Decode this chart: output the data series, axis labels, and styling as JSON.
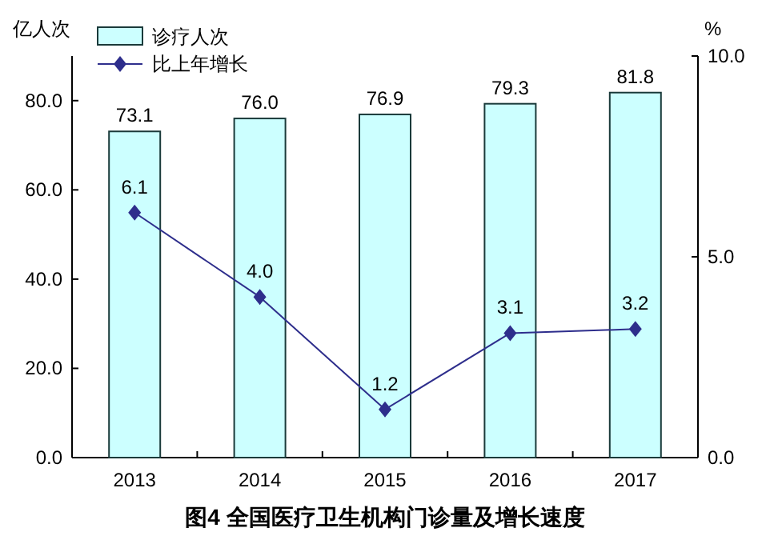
{
  "chart_data": {
    "type": "bar",
    "title": "图4  全国医疗卫生机构门诊量及增长速度",
    "ylabel": "亿人次",
    "y2label": "%",
    "categories": [
      "2013",
      "2014",
      "2015",
      "2016",
      "2017"
    ],
    "series": [
      {
        "name": "诊疗人次",
        "color": "#ccffff",
        "values": [
          73.1,
          76.0,
          76.9,
          79.3,
          81.8
        ],
        "value_labels": [
          "73.1",
          "76.0",
          "76.9",
          "79.3",
          "81.8"
        ]
      },
      {
        "name": "比上年增长",
        "type": "line",
        "axis": "y2",
        "color": "#2e2e8c",
        "values": [
          6.1,
          4.0,
          1.2,
          3.1,
          3.2
        ],
        "value_labels": [
          "6.1",
          "4.0",
          "1.2",
          "3.1",
          "3.2"
        ]
      }
    ],
    "ylim": [
      0,
      90
    ],
    "yticks": [
      {
        "value": 0,
        "label": "0.0"
      },
      {
        "value": 20,
        "label": "20.0"
      },
      {
        "value": 40,
        "label": "40.0"
      },
      {
        "value": 60,
        "label": "60.0"
      },
      {
        "value": 80,
        "label": "80.0"
      }
    ],
    "y2lim": [
      0,
      10
    ],
    "y2ticks": [
      {
        "value": 0,
        "label": "0.0"
      },
      {
        "value": 5,
        "label": "5.0"
      },
      {
        "value": 10,
        "label": "10.0"
      }
    ],
    "legend": "top left",
    "marker": "diamond"
  }
}
